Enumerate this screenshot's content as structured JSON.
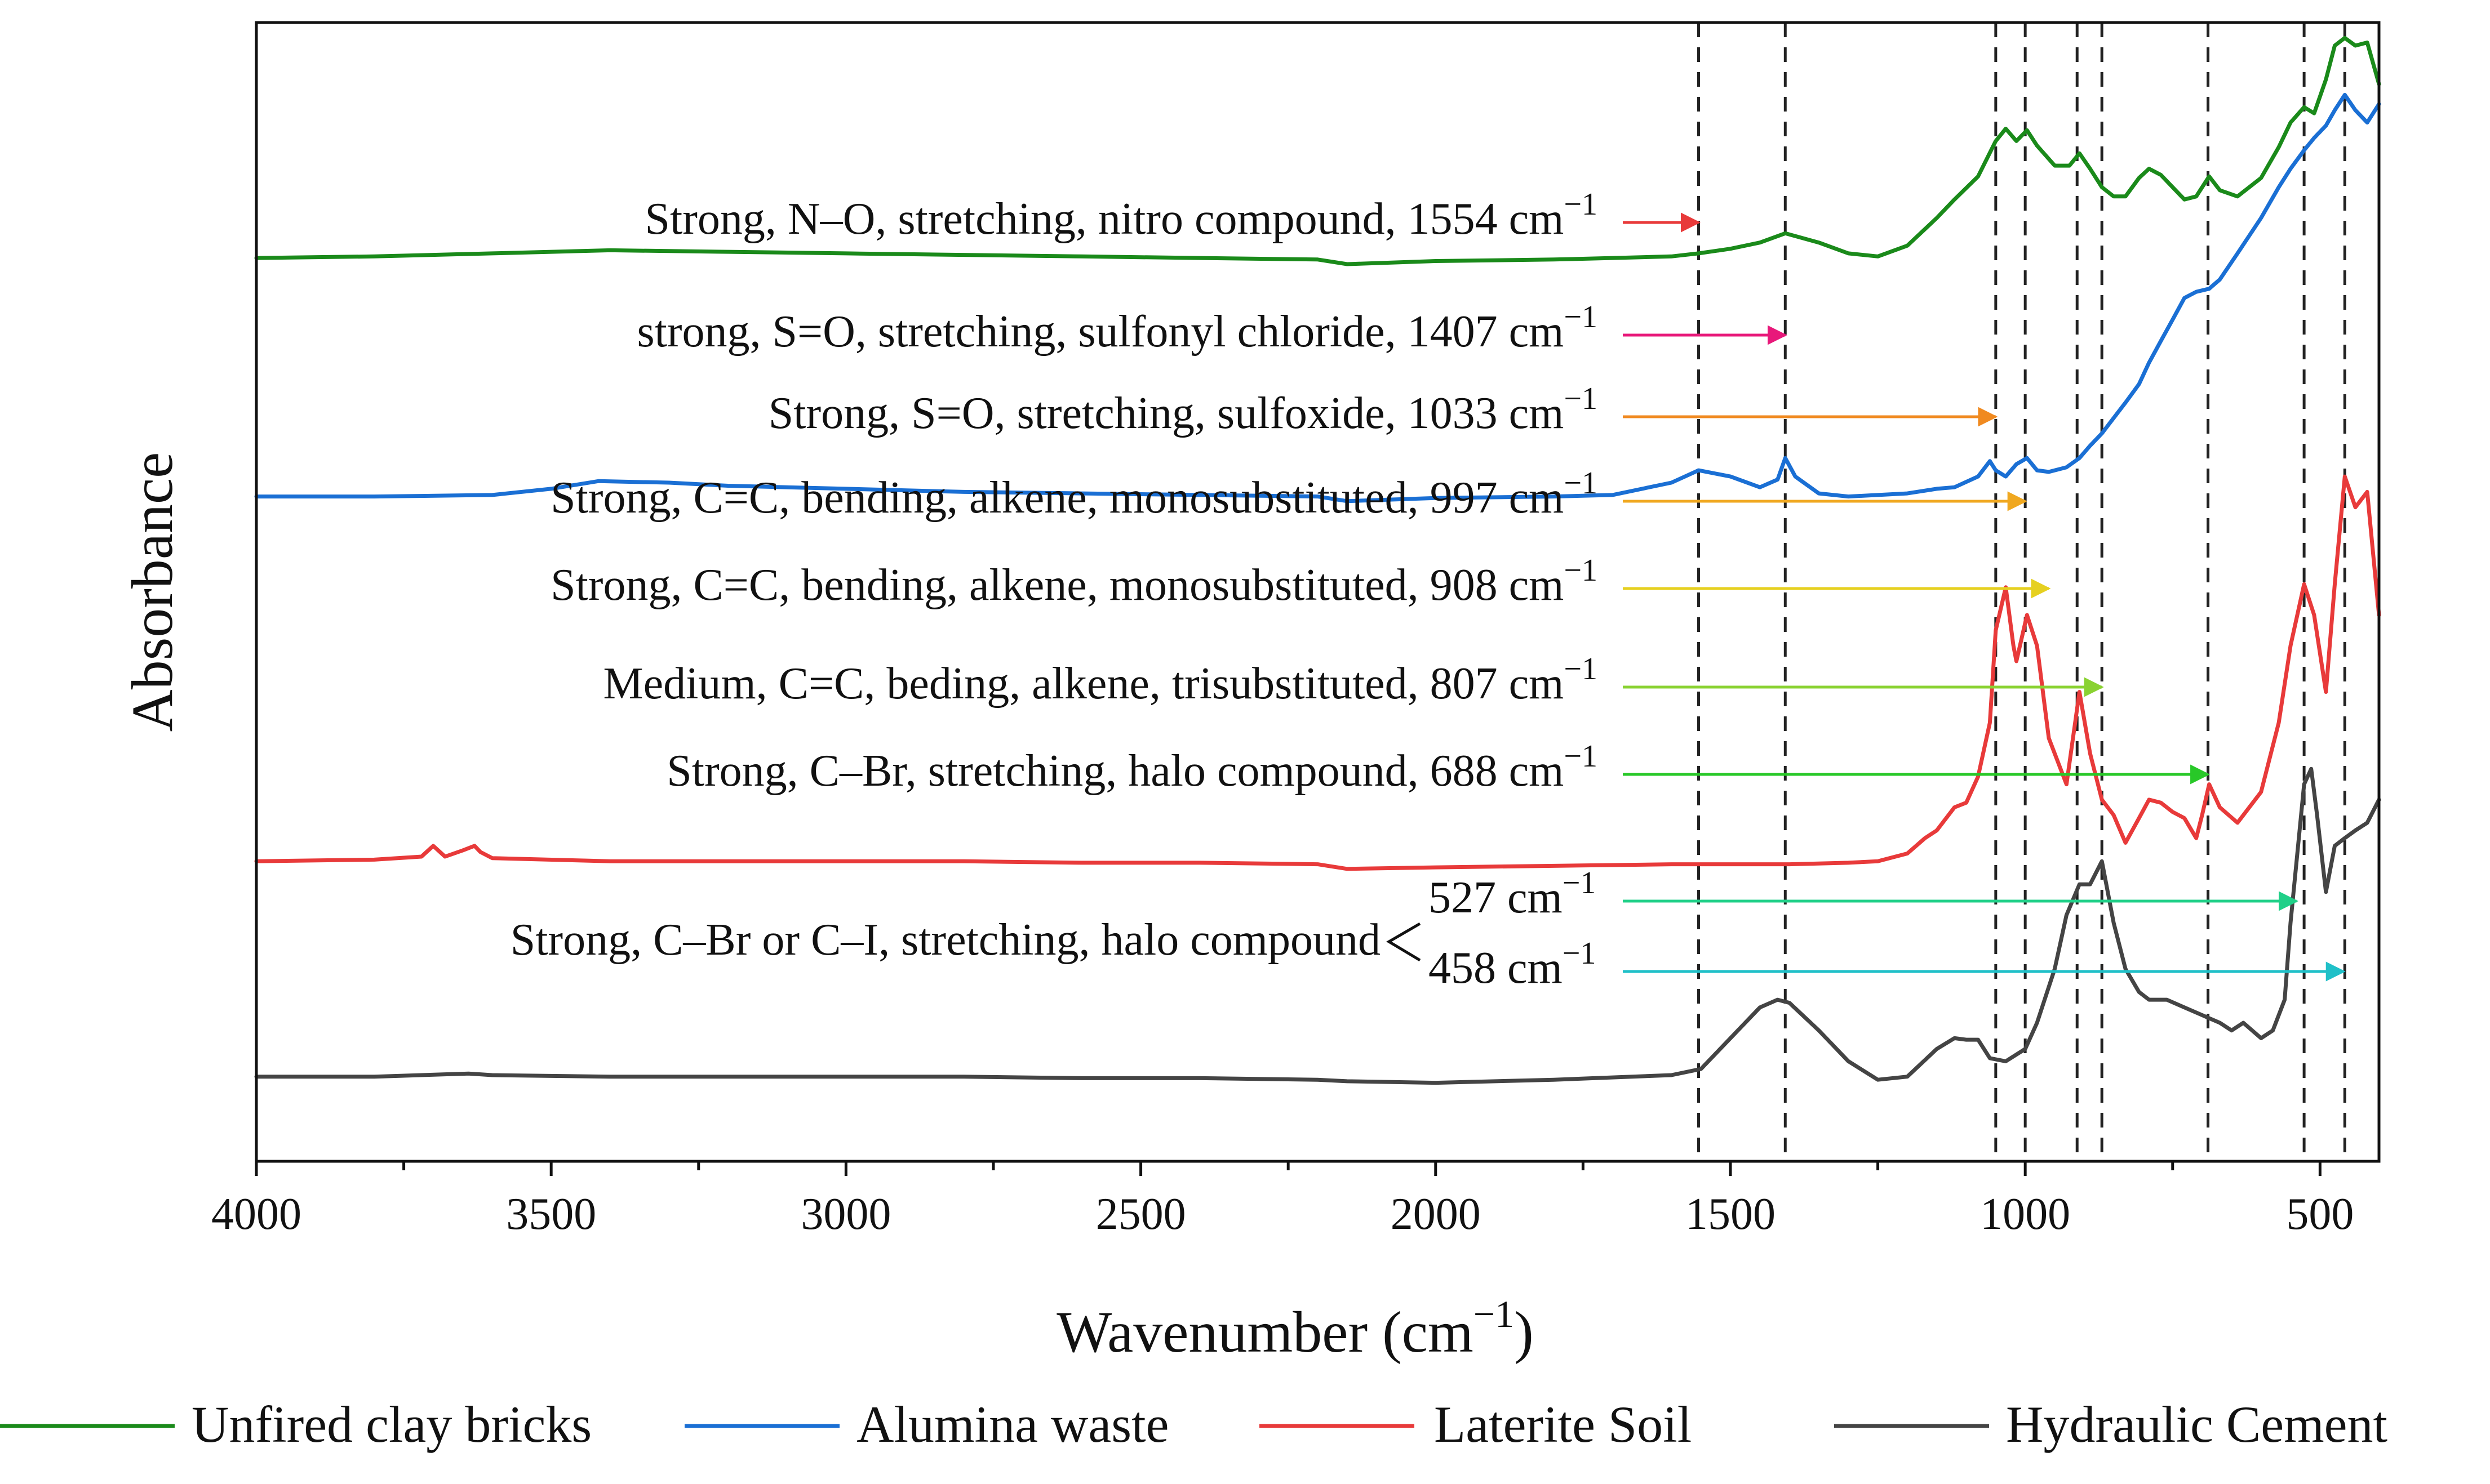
{
  "chart_data": {
    "type": "line",
    "title": "",
    "xlabel": "Wavenumber (cm",
    "xlabel_superscript": "−1",
    "xlabel_suffix": ")",
    "ylabel": "Absorbance",
    "xlim": [
      4000,
      400
    ],
    "x_reversed": true,
    "xticks": [
      4000,
      3500,
      3000,
      2500,
      2000,
      1500,
      1000,
      500
    ],
    "yticks": [],
    "grid": false,
    "legend_position": "bottom",
    "y_units": "arbitrary (stacked offset spectra)",
    "series": [
      {
        "name": "Unfired clay bricks",
        "color": "#1a8a1a",
        "x": [
          4000,
          3800,
          3600,
          3400,
          3200,
          3000,
          2800,
          2600,
          2400,
          2200,
          2150,
          2000,
          1800,
          1700,
          1600,
          1554,
          1500,
          1450,
          1407,
          1350,
          1300,
          1250,
          1200,
          1150,
          1120,
          1080,
          1050,
          1033,
          1015,
          997,
          980,
          950,
          925,
          908,
          890,
          870,
          850,
          830,
          807,
          790,
          770,
          750,
          730,
          710,
          688,
          670,
          640,
          600,
          570,
          550,
          527,
          510,
          490,
          475,
          458,
          440,
          420,
          400
        ],
        "y": [
          3.52,
          3.53,
          3.55,
          3.57,
          3.56,
          3.55,
          3.54,
          3.53,
          3.52,
          3.51,
          3.48,
          3.5,
          3.51,
          3.52,
          3.53,
          3.55,
          3.58,
          3.62,
          3.68,
          3.62,
          3.55,
          3.53,
          3.6,
          3.78,
          3.9,
          4.05,
          4.28,
          4.36,
          4.28,
          4.35,
          4.25,
          4.12,
          4.12,
          4.2,
          4.1,
          3.98,
          3.92,
          3.92,
          4.04,
          4.1,
          4.06,
          3.98,
          3.9,
          3.92,
          4.05,
          3.96,
          3.92,
          4.04,
          4.24,
          4.4,
          4.5,
          4.46,
          4.68,
          4.9,
          4.95,
          4.9,
          4.92,
          4.65
        ]
      },
      {
        "name": "Alumina waste",
        "color": "#1a6fd4",
        "x": [
          4000,
          3800,
          3600,
          3500,
          3420,
          3300,
          3200,
          3000,
          2800,
          2600,
          2400,
          2200,
          2150,
          2000,
          1800,
          1700,
          1600,
          1554,
          1500,
          1450,
          1420,
          1407,
          1390,
          1350,
          1300,
          1250,
          1200,
          1150,
          1120,
          1080,
          1060,
          1050,
          1033,
          1015,
          997,
          980,
          960,
          930,
          908,
          890,
          870,
          850,
          830,
          807,
          790,
          770,
          750,
          730,
          710,
          688,
          670,
          640,
          600,
          570,
          550,
          527,
          510,
          490,
          475,
          458,
          440,
          420,
          400
        ],
        "y": [
          1.97,
          1.97,
          1.98,
          2.02,
          2.07,
          2.06,
          2.04,
          2.02,
          2.0,
          1.99,
          1.98,
          1.97,
          1.94,
          1.96,
          1.97,
          1.98,
          2.06,
          2.14,
          2.1,
          2.03,
          2.08,
          2.22,
          2.1,
          1.99,
          1.97,
          1.98,
          1.99,
          2.02,
          2.03,
          2.1,
          2.2,
          2.14,
          2.1,
          2.18,
          2.22,
          2.14,
          2.13,
          2.16,
          2.22,
          2.3,
          2.38,
          2.48,
          2.58,
          2.7,
          2.84,
          2.98,
          3.12,
          3.26,
          3.3,
          3.32,
          3.38,
          3.55,
          3.78,
          3.98,
          4.1,
          4.22,
          4.3,
          4.38,
          4.48,
          4.58,
          4.48,
          4.4,
          4.52
        ]
      },
      {
        "name": "Laterite Soil",
        "color": "#e83a3a",
        "x": [
          4000,
          3800,
          3720,
          3700,
          3680,
          3650,
          3630,
          3620,
          3600,
          3400,
          3200,
          3000,
          2800,
          2600,
          2400,
          2200,
          2150,
          2000,
          1800,
          1600,
          1400,
          1300,
          1250,
          1200,
          1170,
          1150,
          1120,
          1100,
          1080,
          1060,
          1050,
          1033,
          1020,
          1015,
          997,
          980,
          960,
          930,
          908,
          890,
          870,
          850,
          830,
          807,
          790,
          770,
          750,
          730,
          710,
          700,
          688,
          670,
          640,
          600,
          570,
          550,
          527,
          510,
          490,
          475,
          458,
          440,
          420,
          400
        ],
        "y": [
          -0.4,
          -0.39,
          -0.37,
          -0.3,
          -0.37,
          -0.33,
          -0.3,
          -0.34,
          -0.38,
          -0.4,
          -0.4,
          -0.4,
          -0.4,
          -0.41,
          -0.41,
          -0.42,
          -0.45,
          -0.44,
          -0.43,
          -0.42,
          -0.42,
          -0.41,
          -0.4,
          -0.35,
          -0.25,
          -0.2,
          -0.05,
          -0.02,
          0.15,
          0.5,
          1.1,
          1.38,
          1.0,
          0.9,
          1.2,
          1.0,
          0.4,
          0.1,
          0.7,
          0.3,
          0.0,
          -0.1,
          -0.28,
          -0.12,
          0.0,
          -0.02,
          -0.08,
          -0.12,
          -0.25,
          -0.1,
          0.1,
          -0.05,
          -0.15,
          0.05,
          0.5,
          1.0,
          1.4,
          1.2,
          0.7,
          1.4,
          2.1,
          1.9,
          2.0,
          1.2
        ]
      },
      {
        "name": "Hydraulic Cement",
        "color": "#444444",
        "x": [
          4000,
          3800,
          3640,
          3600,
          3400,
          3200,
          3000,
          2800,
          2600,
          2400,
          2200,
          2150,
          2000,
          1800,
          1600,
          1550,
          1500,
          1450,
          1420,
          1400,
          1350,
          1300,
          1250,
          1200,
          1150,
          1120,
          1100,
          1080,
          1060,
          1033,
          1000,
          980,
          950,
          930,
          908,
          890,
          870,
          850,
          830,
          807,
          790,
          760,
          730,
          700,
          688,
          670,
          650,
          630,
          600,
          580,
          560,
          550,
          527,
          515,
          505,
          490,
          475,
          458,
          440,
          420,
          400
        ],
        "y": [
          -1.8,
          -1.8,
          -1.78,
          -1.79,
          -1.8,
          -1.8,
          -1.8,
          -1.8,
          -1.81,
          -1.81,
          -1.82,
          -1.83,
          -1.84,
          -1.82,
          -1.79,
          -1.75,
          -1.55,
          -1.35,
          -1.3,
          -1.32,
          -1.5,
          -1.7,
          -1.82,
          -1.8,
          -1.62,
          -1.55,
          -1.56,
          -1.56,
          -1.68,
          -1.7,
          -1.62,
          -1.45,
          -1.1,
          -0.75,
          -0.55,
          -0.55,
          -0.4,
          -0.8,
          -1.1,
          -1.25,
          -1.3,
          -1.3,
          -1.35,
          -1.4,
          -1.42,
          -1.45,
          -1.5,
          -1.45,
          -1.55,
          -1.5,
          -1.3,
          -0.8,
          0.1,
          0.2,
          -0.1,
          -0.6,
          -0.3,
          -0.25,
          -0.2,
          -0.15,
          0.0
        ]
      }
    ],
    "reference_lines": [
      1554,
      1407,
      1050,
      1000,
      912,
      870,
      690,
      527,
      458
    ],
    "annotations": [
      {
        "text": "Strong, N–O, stretching, nitro compound, 1554 cm",
        "sup": "−1",
        "color": "#e83a3a",
        "target": 1554
      },
      {
        "text": "strong, S=O, stretching, sulfonyl chloride, 1407 cm",
        "sup": "−1",
        "color": "#e8187a",
        "target": 1407
      },
      {
        "text": "Strong, S=O, stretching, sulfoxide, 1033 cm",
        "sup": "−1",
        "color": "#f08a20",
        "target": 1050
      },
      {
        "text": "Strong, C=C, bending, alkene, monosubstituted, 997 cm",
        "sup": "−1",
        "color": "#f0a820",
        "target": 1000
      },
      {
        "text": "Strong, C=C, bending, alkene, monosubstituted, 908 cm",
        "sup": "−1",
        "color": "#e6d020",
        "target": 960
      },
      {
        "text": "Medium, C=C, beding, alkene, trisubstituted, 807 cm",
        "sup": "−1",
        "color": "#8ad232",
        "target": 870
      },
      {
        "text": "Strong, C–Br, stretching, halo compound, 688 cm",
        "sup": "−1",
        "color": "#28c828",
        "target": 690
      }
    ],
    "bracket_annotation": {
      "text": "Strong, C–Br or C–I, stretching, halo compound",
      "items": [
        {
          "text": "527 cm",
          "sup": "−1",
          "color": "#20d088",
          "target": 540
        },
        {
          "text": "458 cm",
          "sup": "−1",
          "color": "#20c0c8",
          "target": 460
        }
      ]
    }
  }
}
